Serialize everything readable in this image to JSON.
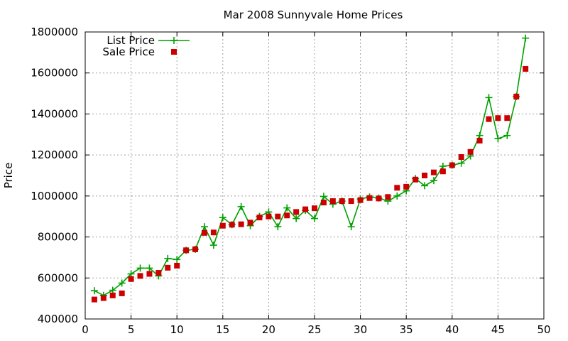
{
  "chart_data": {
    "type": "line",
    "title": "Mar 2008 Sunnyvale Home Prices",
    "xlabel": "",
    "ylabel": "Price",
    "xlim": [
      0,
      50
    ],
    "ylim": [
      400000,
      1800000
    ],
    "xticks": [
      0,
      5,
      10,
      15,
      20,
      25,
      30,
      35,
      40,
      45,
      50
    ],
    "yticks": [
      400000,
      600000,
      800000,
      1000000,
      1200000,
      1400000,
      1600000,
      1800000
    ],
    "grid": true,
    "legend_position": "top-left",
    "series": [
      {
        "name": "List Price",
        "style": "line-with-plus-markers",
        "color": "#00a000",
        "x": [
          1,
          2,
          3,
          4,
          5,
          6,
          7,
          8,
          9,
          10,
          11,
          12,
          13,
          14,
          15,
          16,
          17,
          18,
          19,
          20,
          21,
          22,
          23,
          24,
          25,
          26,
          27,
          28,
          29,
          30,
          31,
          32,
          33,
          34,
          35,
          36,
          37,
          38,
          39,
          40,
          41,
          42,
          43,
          44,
          45,
          46,
          47,
          48
        ],
        "values": [
          538000,
          515000,
          540000,
          575000,
          620000,
          648000,
          648000,
          610000,
          695000,
          690000,
          735000,
          740000,
          850000,
          760000,
          895000,
          860000,
          948000,
          855000,
          900000,
          922000,
          850000,
          942000,
          890000,
          930000,
          890000,
          998000,
          960000,
          975000,
          850000,
          985000,
          995000,
          990000,
          975000,
          1000000,
          1025000,
          1085000,
          1050000,
          1075000,
          1145000,
          1150000,
          1160000,
          1195000,
          1295000,
          1480000,
          1280000,
          1295000,
          1485000,
          1770000
        ]
      },
      {
        "name": "Sale Price",
        "style": "square-markers",
        "color": "#cc0000",
        "x": [
          1,
          2,
          3,
          4,
          5,
          6,
          7,
          8,
          9,
          10,
          11,
          12,
          13,
          14,
          15,
          16,
          17,
          18,
          19,
          20,
          21,
          22,
          23,
          24,
          25,
          26,
          27,
          28,
          29,
          30,
          31,
          32,
          33,
          34,
          35,
          36,
          37,
          38,
          39,
          40,
          41,
          42,
          43,
          44,
          45,
          46,
          47,
          48
        ],
        "values": [
          495000,
          502000,
          515000,
          525000,
          595000,
          610000,
          620000,
          625000,
          650000,
          660000,
          735000,
          740000,
          820000,
          822000,
          855000,
          860000,
          862000,
          870000,
          895000,
          900000,
          900000,
          905000,
          922000,
          935000,
          940000,
          968000,
          975000,
          975000,
          975000,
          980000,
          990000,
          988000,
          995000,
          1040000,
          1045000,
          1080000,
          1100000,
          1115000,
          1120000,
          1150000,
          1190000,
          1215000,
          1270000,
          1375000,
          1380000,
          1380000,
          1485000,
          1620000
        ]
      }
    ]
  }
}
